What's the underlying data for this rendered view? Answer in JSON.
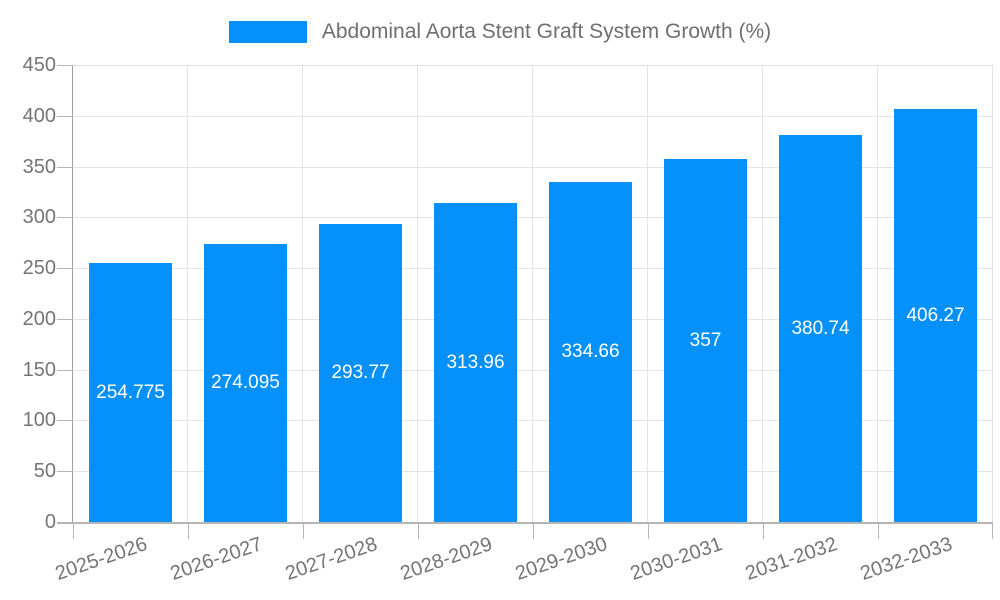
{
  "legend": {
    "label": "Abdominal Aorta Stent Graft System Growth (%)"
  },
  "chart_data": {
    "type": "bar",
    "title": "Abdominal Aorta Stent Graft System Growth (%)",
    "xlabel": "",
    "ylabel": "",
    "categories": [
      "2025-2026",
      "2026-2027",
      "2027-2028",
      "2028-2029",
      "2029-2030",
      "2030-2031",
      "2031-2032",
      "2032-2033"
    ],
    "series": [
      {
        "name": "Abdominal Aorta Stent Graft System Growth (%)",
        "values": [
          254.775,
          274.095,
          293.77,
          313.96,
          334.66,
          357,
          380.74,
          406.27
        ]
      }
    ],
    "value_labels": [
      "254.775",
      "274.095",
      "293.77",
      "313.96",
      "334.66",
      "357",
      "380.74",
      "406.27"
    ],
    "ylim": [
      0,
      450
    ],
    "y_ticks": [
      0,
      50,
      100,
      150,
      200,
      250,
      300,
      350,
      400,
      450
    ],
    "y_tick_labels": [
      "0",
      "50",
      "100",
      "150",
      "200",
      "250",
      "300",
      "350",
      "400",
      "450"
    ],
    "grid": true,
    "legend_position": "top",
    "colors": {
      "bar": "#0690FA",
      "grid": "#e3e3e3",
      "axis": "#b5b5b5",
      "axis_label": "#757575",
      "legend_label": "#6f6f6f",
      "value_label": "#ffffff"
    }
  }
}
